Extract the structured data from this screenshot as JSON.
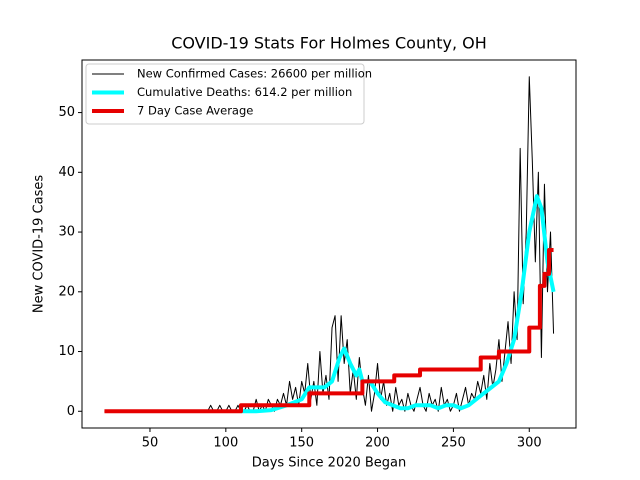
{
  "chart_data": {
    "type": "line",
    "title": "COVID-19 Stats For Holmes County, OH",
    "x_label": "Days Since 2020 Began",
    "y_label": "New COVID-19 Cases",
    "xlim": [
      5.2,
      330.8
    ],
    "ylim": [
      -2.8,
      58.8
    ],
    "xticks": [
      50,
      100,
      150,
      200,
      250,
      300
    ],
    "yticks": [
      0,
      10,
      20,
      30,
      40,
      50
    ],
    "legend": "upper left",
    "series": [
      {
        "name": "New Confirmed Cases: 26600 per million",
        "color": "#000000",
        "width": 1,
        "x": [
          20,
          22,
          24,
          26,
          28,
          30,
          32,
          34,
          36,
          38,
          40,
          42,
          44,
          46,
          48,
          50,
          52,
          54,
          56,
          58,
          60,
          62,
          64,
          66,
          68,
          70,
          72,
          74,
          76,
          78,
          80,
          82,
          84,
          86,
          88,
          90,
          92,
          94,
          96,
          98,
          100,
          102,
          104,
          106,
          108,
          110,
          112,
          114,
          116,
          118,
          120,
          122,
          124,
          126,
          128,
          130,
          132,
          134,
          136,
          138,
          140,
          142,
          144,
          146,
          148,
          150,
          152,
          154,
          156,
          158,
          160,
          162,
          164,
          166,
          168,
          170,
          172,
          174,
          176,
          178,
          180,
          182,
          184,
          186,
          188,
          190,
          192,
          194,
          196,
          198,
          200,
          202,
          204,
          206,
          208,
          210,
          212,
          214,
          216,
          218,
          220,
          222,
          224,
          226,
          228,
          230,
          232,
          234,
          236,
          238,
          240,
          242,
          244,
          246,
          248,
          250,
          252,
          254,
          256,
          258,
          260,
          262,
          264,
          266,
          268,
          270,
          272,
          274,
          276,
          278,
          280,
          282,
          284,
          286,
          288,
          290,
          292,
          294,
          296,
          298,
          300,
          302,
          304,
          306,
          308,
          310,
          312,
          314,
          316
        ],
        "values": [
          0,
          0,
          0,
          0,
          0,
          0,
          0,
          0,
          0,
          0,
          0,
          0,
          0,
          0,
          0,
          0,
          0,
          0,
          0,
          0,
          0,
          0,
          0,
          0,
          0,
          0,
          0,
          0,
          0,
          0,
          0,
          0,
          0,
          0,
          0,
          1,
          0,
          0,
          1,
          0,
          0,
          1,
          0,
          0,
          1,
          0,
          0,
          1,
          0,
          0,
          2,
          0,
          1,
          0,
          2,
          1,
          0,
          2,
          1,
          3,
          1,
          5,
          2,
          4,
          1,
          5,
          3,
          8,
          2,
          5,
          1,
          10,
          3,
          6,
          2,
          14,
          16,
          5,
          16,
          8,
          12,
          3,
          7,
          2,
          9,
          4,
          1,
          6,
          0,
          3,
          8,
          2,
          5,
          1,
          3,
          0,
          4,
          1,
          2,
          0,
          3,
          1,
          0,
          2,
          4,
          1,
          0,
          3,
          1,
          2,
          0,
          4,
          1,
          2,
          0,
          1,
          3,
          0,
          2,
          4,
          1,
          3,
          2,
          5,
          3,
          6,
          2,
          8,
          4,
          7,
          12,
          5,
          10,
          15,
          8,
          20,
          12,
          44,
          18,
          30,
          56,
          42,
          25,
          40,
          9,
          38,
          20,
          30,
          13
        ]
      },
      {
        "name": "Cumulative Deaths: 614.2 per million",
        "color": "#00ffff",
        "width": 4,
        "x": [
          110,
          120,
          130,
          140,
          150,
          155,
          165,
          170,
          175,
          178,
          182,
          186,
          188,
          190,
          195,
          200,
          205,
          210,
          215,
          220,
          225,
          230,
          235,
          240,
          245,
          250,
          255,
          260,
          265,
          270,
          275,
          280,
          285,
          290,
          295,
          300,
          305,
          308,
          312,
          316
        ],
        "values": [
          0,
          0,
          0.2,
          1,
          2,
          4,
          4,
          5,
          9,
          10.5,
          8,
          6,
          7,
          5,
          5,
          3,
          1.5,
          1,
          0.5,
          0.5,
          1,
          1,
          1,
          0.5,
          1,
          1,
          0.5,
          1,
          2,
          3,
          4,
          5,
          8,
          12,
          20,
          30,
          36,
          34,
          25,
          20
        ]
      },
      {
        "name": "7 Day Case Average",
        "color": "#e60000",
        "width": 4,
        "x": [
          20,
          110,
          110,
          155,
          155,
          190,
          190,
          211,
          211,
          228,
          228,
          268,
          268,
          280,
          280,
          300,
          300,
          307,
          307,
          310,
          310,
          313,
          313,
          316
        ],
        "values": [
          0,
          0,
          1,
          1,
          3,
          3,
          5,
          5,
          6,
          6,
          7,
          7,
          9,
          9,
          10,
          10,
          14,
          14,
          21,
          21,
          23,
          23,
          27,
          27
        ]
      }
    ]
  }
}
